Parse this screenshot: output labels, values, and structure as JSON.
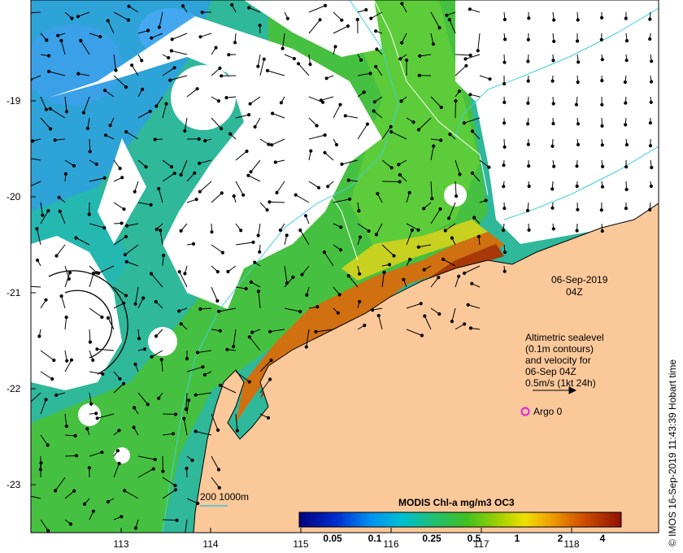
{
  "map": {
    "datetime": "06-Sep-2019",
    "time": "04Z",
    "x_ticks": [
      "113",
      "114",
      "115",
      "116",
      "117",
      "118"
    ],
    "y_ticks": [
      "-19",
      "-20",
      "-21",
      "-22",
      "-23"
    ]
  },
  "annotation": {
    "line1": "Altimetric sealevel",
    "line2": "(0.1m contours)",
    "line3": "and velocity for",
    "line4": "06-Sep 04Z",
    "line5": "0.5m/s (1kt 24h)"
  },
  "argo": {
    "label": "Argo 0",
    "color": "#e020e0"
  },
  "bathymetry_legend": {
    "label": "200  1000m",
    "color": "#40c0e0"
  },
  "colorbar": {
    "title": "MODIS Chl-a mg/m3 OC3",
    "ticks": [
      "0.05",
      "0.1",
      "0.25",
      "0.5",
      "1",
      "2",
      "4"
    ]
  },
  "credit": "© IMOS 16-Sep-2019 11:43:39 Hobart time",
  "colors": {
    "land": "#fbc89a",
    "coast_outline": "#000000",
    "contour": "#40d0e0"
  }
}
